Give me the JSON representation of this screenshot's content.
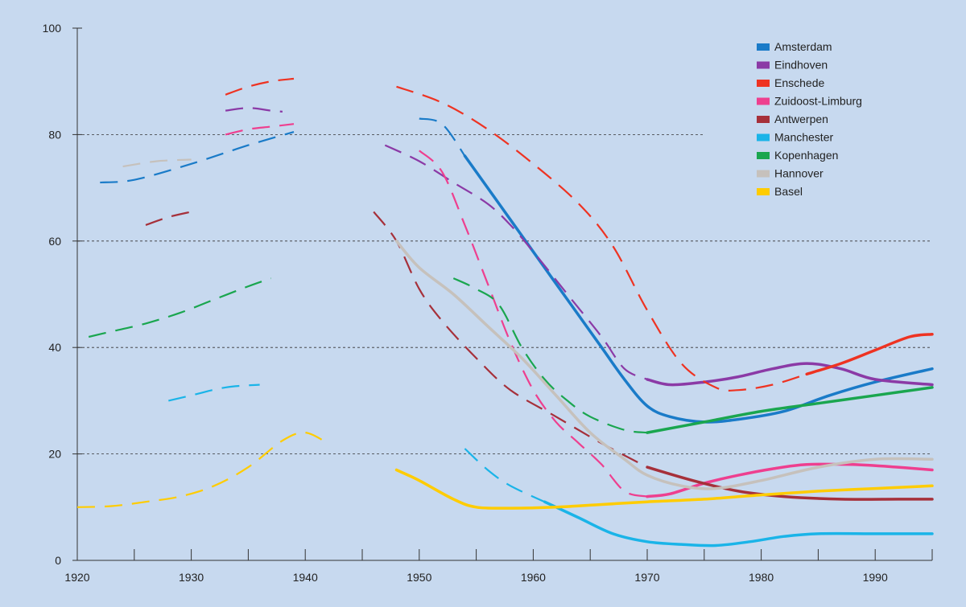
{
  "chart_data": {
    "type": "line",
    "title": "",
    "xlabel": "",
    "ylabel": "",
    "xlim": [
      1920,
      1995
    ],
    "ylim": [
      0,
      100
    ],
    "x_ticks": [
      1920,
      1930,
      1940,
      1950,
      1960,
      1970,
      1980,
      1990
    ],
    "y_ticks": [
      0,
      20,
      40,
      60,
      80,
      100
    ],
    "grid": "horizontal dashed at 20, 40, 60, 80",
    "legend_position": "top-right",
    "background_color": "#c7d9ef",
    "series": [
      {
        "name": "Amsterdam",
        "color": "#1a7bc8",
        "dashed_segments": [
          [
            [
              1922,
              71
            ],
            [
              1925,
              71.5
            ],
            [
              1930,
              74.5
            ],
            [
              1935,
              78
            ],
            [
              1939,
              80.5
            ]
          ],
          [
            [
              1950,
              83
            ],
            [
              1952,
              82
            ],
            [
              1954,
              76
            ]
          ]
        ],
        "solid_segments": [
          [
            [
              1954,
              76
            ],
            [
              1958,
              64
            ],
            [
              1962,
              52
            ],
            [
              1966,
              40
            ],
            [
              1968,
              34
            ],
            [
              1970,
              29
            ],
            [
              1972,
              27
            ],
            [
              1975,
              26
            ],
            [
              1978,
              26.5
            ],
            [
              1982,
              28
            ],
            [
              1986,
              31
            ],
            [
              1990,
              33.5
            ],
            [
              1995,
              36
            ]
          ]
        ]
      },
      {
        "name": "Eindhoven",
        "color": "#8b3aa6",
        "dashed_segments": [
          [
            [
              1933,
              84.5
            ],
            [
              1935,
              85
            ],
            [
              1937,
              84.5
            ],
            [
              1938,
              84.3
            ]
          ],
          [
            [
              1947,
              78
            ],
            [
              1950,
              75
            ],
            [
              1953,
              71
            ],
            [
              1956,
              67
            ],
            [
              1958,
              63
            ],
            [
              1960,
              58
            ],
            [
              1963,
              50
            ],
            [
              1966,
              42
            ],
            [
              1968,
              36
            ],
            [
              1970,
              34
            ]
          ]
        ],
        "solid_segments": [
          [
            [
              1970,
              34
            ],
            [
              1972,
              33
            ],
            [
              1975,
              33.5
            ],
            [
              1978,
              34.5
            ],
            [
              1981,
              36
            ],
            [
              1984,
              37
            ],
            [
              1987,
              36
            ],
            [
              1990,
              34
            ],
            [
              1995,
              33
            ]
          ]
        ]
      },
      {
        "name": "Enschede",
        "color": "#ee3322",
        "dashed_segments": [
          [
            [
              1933,
              87.5
            ],
            [
              1935,
              89
            ],
            [
              1937,
              90
            ],
            [
              1939,
              90.5
            ]
          ],
          [
            [
              1948,
              89
            ],
            [
              1952,
              86
            ],
            [
              1956,
              81
            ],
            [
              1960,
              74.5
            ],
            [
              1964,
              67
            ],
            [
              1967,
              59
            ],
            [
              1970,
              47
            ],
            [
              1973,
              37
            ],
            [
              1976,
              32.5
            ],
            [
              1978,
              32
            ],
            [
              1981,
              33
            ],
            [
              1984,
              35
            ]
          ]
        ],
        "solid_segments": [
          [
            [
              1984,
              35
            ],
            [
              1987,
              37
            ],
            [
              1990,
              39.5
            ],
            [
              1993,
              42
            ],
            [
              1995,
              42.5
            ]
          ]
        ]
      },
      {
        "name": "Zuidoost-Limburg",
        "color": "#ee3f8f",
        "dashed_segments": [
          [
            [
              1933,
              80
            ],
            [
              1935,
              81
            ],
            [
              1937,
              81.5
            ],
            [
              1939,
              82
            ]
          ],
          [
            [
              1950,
              77
            ],
            [
              1952,
              73
            ],
            [
              1954,
              63
            ],
            [
              1956,
              52
            ],
            [
              1958,
              41
            ],
            [
              1960,
              32
            ],
            [
              1962,
              26
            ],
            [
              1964,
              22
            ],
            [
              1966,
              18
            ],
            [
              1968,
              13
            ],
            [
              1970,
              12
            ]
          ]
        ],
        "solid_segments": [
          [
            [
              1970,
              12
            ],
            [
              1972,
              12.5
            ],
            [
              1975,
              14.5
            ],
            [
              1978,
              16
            ],
            [
              1981,
              17.2
            ],
            [
              1984,
              18
            ],
            [
              1988,
              18
            ],
            [
              1992,
              17.5
            ],
            [
              1995,
              17
            ]
          ]
        ]
      },
      {
        "name": "Antwerpen",
        "color": "#a6303a",
        "dashed_segments": [
          [
            [
              1926,
              63
            ],
            [
              1928,
              64.5
            ],
            [
              1930,
              65.5
            ]
          ],
          [
            [
              1946,
              65.5
            ],
            [
              1948,
              60
            ],
            [
              1950,
              51
            ],
            [
              1952,
              45
            ],
            [
              1955,
              38
            ],
            [
              1958,
              32
            ],
            [
              1962,
              27
            ],
            [
              1966,
              22
            ],
            [
              1970,
              17.5
            ]
          ]
        ],
        "solid_segments": [
          [
            [
              1970,
              17.5
            ],
            [
              1974,
              15
            ],
            [
              1978,
              13
            ],
            [
              1982,
              12
            ],
            [
              1987,
              11.5
            ],
            [
              1992,
              11.5
            ],
            [
              1995,
              11.5
            ]
          ]
        ]
      },
      {
        "name": "Manchester",
        "color": "#1ab4e8",
        "dashed_segments": [
          [
            [
              1928,
              30
            ],
            [
              1930,
              31
            ],
            [
              1933,
              32.5
            ],
            [
              1936,
              33
            ]
          ],
          [
            [
              1954,
              21
            ],
            [
              1956,
              17
            ],
            [
              1958,
              14
            ],
            [
              1961,
              11
            ]
          ]
        ],
        "solid_segments": [
          [
            [
              1961,
              11
            ],
            [
              1964,
              8
            ],
            [
              1967,
              5
            ],
            [
              1970,
              3.5
            ],
            [
              1973,
              3
            ],
            [
              1976,
              2.8
            ],
            [
              1979,
              3.5
            ],
            [
              1982,
              4.5
            ],
            [
              1985,
              5
            ],
            [
              1990,
              5
            ],
            [
              1995,
              5
            ]
          ]
        ]
      },
      {
        "name": "Kopenhagen",
        "color": "#1aa64f",
        "dashed_segments": [
          [
            [
              1921,
              42
            ],
            [
              1923,
              43
            ],
            [
              1926,
              44.5
            ],
            [
              1929,
              46.5
            ],
            [
              1932,
              49
            ],
            [
              1935,
              51.5
            ],
            [
              1937,
              53
            ]
          ],
          [
            [
              1953,
              53
            ],
            [
              1955,
              51
            ],
            [
              1957,
              48
            ],
            [
              1959,
              40
            ],
            [
              1961,
              34
            ],
            [
              1963,
              30
            ],
            [
              1965,
              27
            ],
            [
              1968,
              24.5
            ],
            [
              1970,
              24
            ]
          ]
        ],
        "solid_segments": [
          [
            [
              1970,
              24
            ],
            [
              1975,
              26
            ],
            [
              1980,
              28
            ],
            [
              1985,
              29.5
            ],
            [
              1990,
              31
            ],
            [
              1995,
              32.5
            ]
          ]
        ]
      },
      {
        "name": "Hannover",
        "color": "#c6c1bc",
        "dashed_segments": [
          [
            [
              1924,
              74
            ],
            [
              1927,
              75
            ],
            [
              1930,
              75.3
            ]
          ]
        ],
        "solid_segments": [
          [
            [
              1948,
              60
            ],
            [
              1950,
              55
            ],
            [
              1953,
              50
            ],
            [
              1956,
              44
            ],
            [
              1959,
              38
            ],
            [
              1962,
              31
            ],
            [
              1965,
              24
            ],
            [
              1968,
              19
            ],
            [
              1970,
              16
            ],
            [
              1973,
              14
            ],
            [
              1976,
              13.5
            ],
            [
              1980,
              15
            ],
            [
              1985,
              17.5
            ],
            [
              1990,
              19
            ],
            [
              1995,
              19
            ]
          ]
        ]
      },
      {
        "name": "Basel",
        "color": "#ffcc00",
        "dashed_segments": [
          [
            [
              1920,
              10
            ],
            [
              1923,
              10.2
            ],
            [
              1926,
              11
            ],
            [
              1929,
              12
            ],
            [
              1932,
              14
            ],
            [
              1935,
              17.5
            ],
            [
              1938,
              22.5
            ],
            [
              1940,
              24
            ],
            [
              1942,
              22
            ]
          ]
        ],
        "solid_segments": [
          [
            [
              1948,
              17
            ],
            [
              1950,
              15
            ],
            [
              1953,
              11.5
            ],
            [
              1955,
              10
            ],
            [
              1958,
              9.8
            ],
            [
              1962,
              10
            ],
            [
              1966,
              10.5
            ],
            [
              1970,
              11
            ],
            [
              1975,
              11.5
            ],
            [
              1980,
              12.3
            ],
            [
              1985,
              13
            ],
            [
              1990,
              13.5
            ],
            [
              1995,
              14
            ]
          ]
        ]
      }
    ]
  }
}
